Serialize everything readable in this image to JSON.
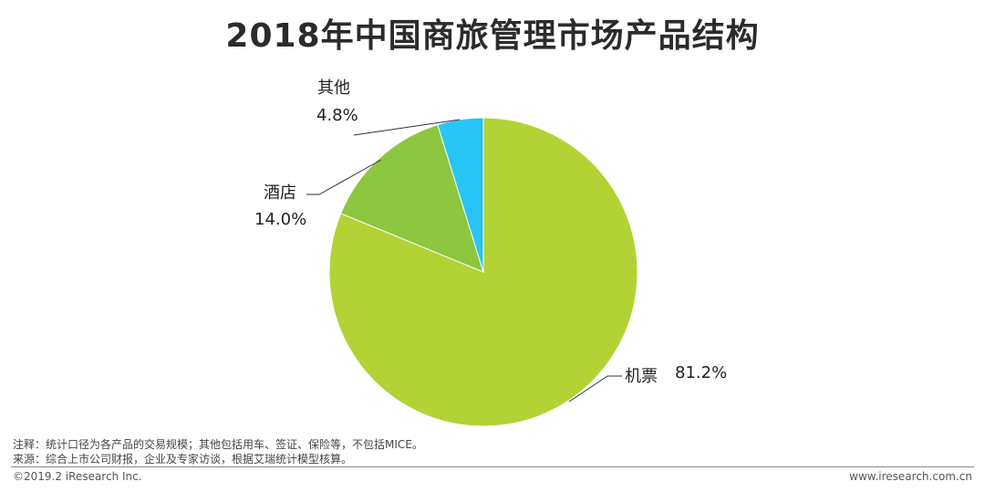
{
  "title": "2018年中国商旅管理市场产品结构",
  "chart_data": {
    "type": "pie",
    "categories": [
      "机票",
      "酒店",
      "其他"
    ],
    "values": [
      81.2,
      14.0,
      4.8
    ],
    "value_labels": [
      "81.2%",
      "14.0%",
      "4.8%"
    ],
    "colors": [
      "#b2d235",
      "#8dc63f",
      "#29c5f6"
    ],
    "title": "2018年中国商旅管理市场产品结构"
  },
  "notes": {
    "note": "注释：统计口径为各产品的交易规模；其他包括用车、签证、保险等，不包括MICE。",
    "source": "来源：综合上市公司财报，企业及专家访谈，根据艾瑞统计模型核算。"
  },
  "footer": {
    "copyright": "©2019.2 iResearch Inc.",
    "website": "www.iresearch.com.cn"
  }
}
